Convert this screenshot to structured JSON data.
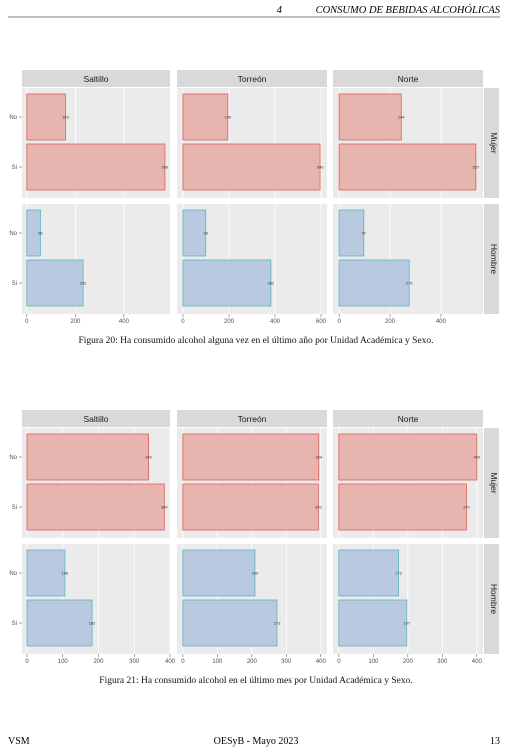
{
  "header": {
    "section": "4",
    "title": "CONSUMO DE BEBIDAS ALCOHÓLICAS"
  },
  "chart_data": [
    {
      "type": "bar",
      "caption": "Figura 20: Ha consumido alcohol alguna vez en el último año por Unidad Académica y Sexo.",
      "categories": [
        "No",
        "Si"
      ],
      "columns": [
        {
          "name": "Saltillo",
          "xlim": [
            -20,
            590
          ],
          "xticks": [
            0,
            200,
            400
          ]
        },
        {
          "name": "Torreón",
          "xlim": [
            -26,
            626
          ],
          "xticks": [
            0,
            200,
            400,
            600
          ]
        },
        {
          "name": "Norte",
          "xlim": [
            -24,
            565
          ],
          "xticks": [
            0,
            200,
            400
          ]
        }
      ],
      "rows": [
        {
          "name": "Mujer",
          "color": "#e8b4b0",
          "edge": "#d9615a"
        },
        {
          "name": "Hombre",
          "color": "#b9c9e0",
          "edge": "#5ab4c0"
        }
      ],
      "panels": [
        [
          {
            "values": [
              159,
              569
            ]
          },
          {
            "values": [
              195,
              596
            ]
          },
          {
            "values": [
              244,
              537
            ]
          }
        ],
        [
          {
            "values": [
              56,
              232
            ]
          },
          {
            "values": [
              99,
              382
            ]
          },
          {
            "values": [
              97,
              275
            ]
          }
        ]
      ]
    },
    {
      "type": "bar",
      "caption": "Figura 21: Ha consumido alcohol en el último mes por Unidad Académica y Sexo.",
      "categories": [
        "No",
        "Si"
      ],
      "columns": [
        {
          "name": "Saltillo",
          "xlim": [
            -14,
            400
          ],
          "xticks": [
            0,
            100,
            200,
            300,
            400
          ]
        },
        {
          "name": "Torreón",
          "xlim": [
            -17,
            418
          ],
          "xticks": [
            0,
            100,
            200,
            300,
            400
          ]
        },
        {
          "name": "Norte",
          "xlim": [
            -17,
            418
          ],
          "xticks": [
            0,
            100,
            200,
            300,
            400
          ]
        }
      ],
      "rows": [
        {
          "name": "Mujer",
          "color": "#e8b4b0",
          "edge": "#d9615a"
        },
        {
          "name": "Hombre",
          "color": "#b9c9e0",
          "edge": "#5ab4c0"
        }
      ],
      "panels": [
        [
          {
            "values": [
              340,
              384
            ]
          },
          {
            "values": [
              394,
              393
            ]
          },
          {
            "values": [
              400,
              370
            ]
          }
        ],
        [
          {
            "values": [
              106,
              182
            ]
          },
          {
            "values": [
              209,
              273
            ]
          },
          {
            "values": [
              173,
              197
            ]
          }
        ]
      ]
    }
  ],
  "footer": {
    "left": "VSM",
    "center": "OESyB - Mayo 2023",
    "page": "13"
  }
}
